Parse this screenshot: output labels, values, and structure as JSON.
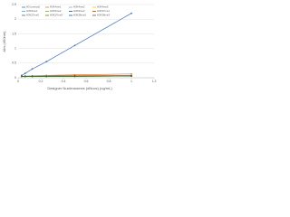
{
  "chart_data": {
    "type": "line",
    "x_label": "Designer Nucleosomes (dNucs) (ug/mL)",
    "y_label": "Abs (450nm)",
    "x": [
      0.03125,
      0.0625,
      0.125,
      0.25,
      0.5,
      1
    ],
    "xlim": [
      0,
      1.2
    ],
    "xticks": [
      0,
      0.2,
      0.4,
      0.6,
      0.8,
      1,
      1.2
    ],
    "ylim": [
      0,
      2.5
    ],
    "yticks": [
      0,
      0.5,
      1,
      1.5,
      2,
      2.5
    ],
    "grid": true,
    "series": [
      {
        "name": "H3 (unmod)",
        "color": "#4472c4",
        "values": [
          0.08,
          0.15,
          0.3,
          0.55,
          1.1,
          2.2
        ]
      },
      {
        "name": "H3K4me1",
        "color": "#ed7d31",
        "values": [
          0.05,
          0.06,
          0.07,
          0.08,
          0.1,
          0.13
        ]
      },
      {
        "name": "H3K4me2",
        "color": "#a5a5a5",
        "values": [
          0.05,
          0.05,
          0.06,
          0.06,
          0.07,
          0.08
        ]
      },
      {
        "name": "H3K4me3",
        "color": "#ffc000",
        "values": [
          0.05,
          0.05,
          0.06,
          0.06,
          0.07,
          0.08
        ]
      },
      {
        "name": "H3K9me1",
        "color": "#5b9bd5",
        "values": [
          0.05,
          0.05,
          0.05,
          0.06,
          0.06,
          0.07
        ]
      },
      {
        "name": "H3K9me2",
        "color": "#70ad47",
        "values": [
          0.05,
          0.05,
          0.05,
          0.06,
          0.06,
          0.07
        ]
      },
      {
        "name": "H3K9me3",
        "color": "#264478",
        "values": [
          0.05,
          0.05,
          0.05,
          0.05,
          0.06,
          0.06
        ]
      },
      {
        "name": "H3K27me1",
        "color": "#9e480e",
        "values": [
          0.05,
          0.05,
          0.05,
          0.05,
          0.06,
          0.06
        ]
      },
      {
        "name": "H3K27me2",
        "color": "#636363",
        "values": [
          0.05,
          0.05,
          0.05,
          0.05,
          0.06,
          0.06
        ]
      },
      {
        "name": "H3K27me3",
        "color": "#997300",
        "values": [
          0.05,
          0.05,
          0.05,
          0.05,
          0.05,
          0.06
        ]
      },
      {
        "name": "H3K36me2",
        "color": "#255e91",
        "values": [
          0.05,
          0.05,
          0.05,
          0.05,
          0.05,
          0.06
        ]
      },
      {
        "name": "H3K36me3",
        "color": "#43682b",
        "values": [
          0.05,
          0.05,
          0.05,
          0.05,
          0.05,
          0.06
        ]
      }
    ]
  }
}
